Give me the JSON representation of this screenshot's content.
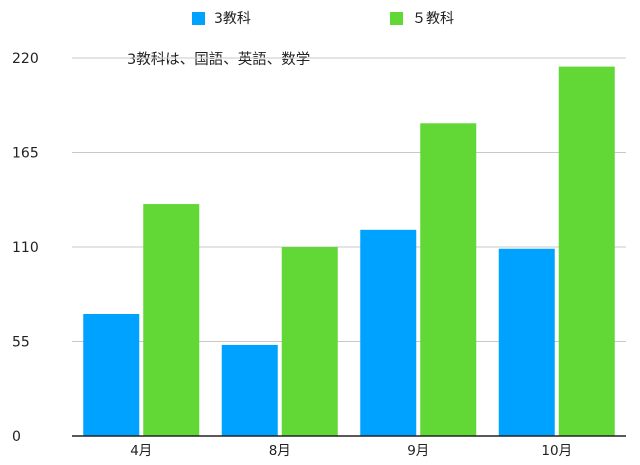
{
  "chart_data": {
    "type": "bar",
    "categories": [
      "4月",
      "8月",
      "9月",
      "10月"
    ],
    "series": [
      {
        "name": "3教科",
        "values": [
          71,
          53,
          120,
          109
        ],
        "color": "#00a2ff"
      },
      {
        "name": "５教科",
        "values": [
          135,
          110,
          182,
          215
        ],
        "color": "#61d836"
      }
    ],
    "annotation": "3教科は、国語、英語、数学",
    "yticks": [
      0,
      55,
      110,
      165,
      220
    ],
    "ylim": [
      0,
      220
    ],
    "grid": true,
    "legend_position": "top"
  }
}
